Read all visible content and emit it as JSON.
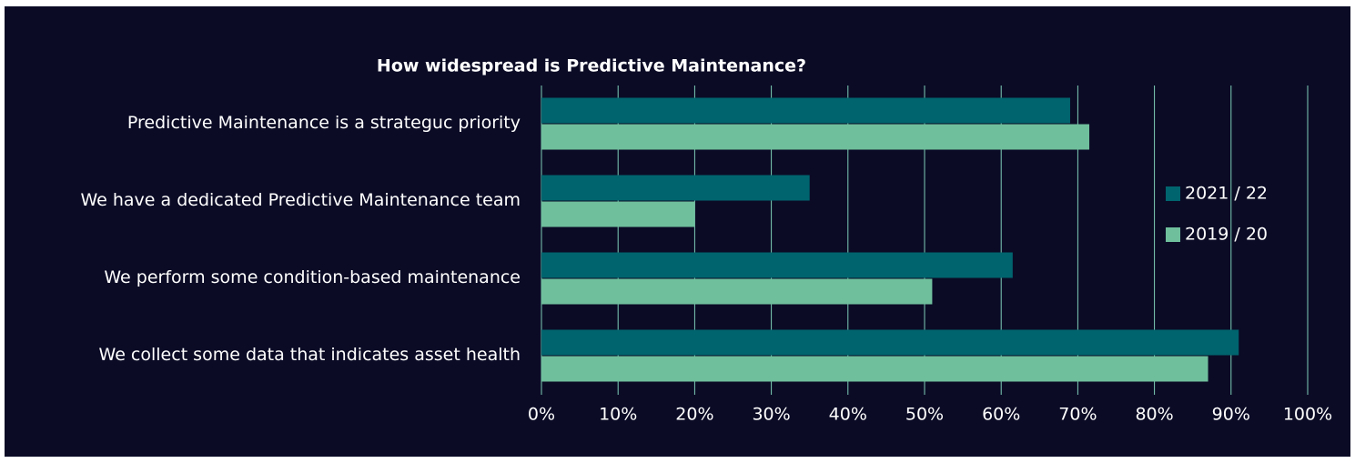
{
  "chart_data": {
    "type": "bar",
    "orientation": "horizontal",
    "title": "How widespread is Predictive Maintenance?",
    "categories": [
      "Predictive Maintenance is a strateguc priority",
      "We have a dedicated Predictive Maintenance team",
      "We perform some condition-based maintenance",
      "We collect some data that indicates asset health"
    ],
    "series": [
      {
        "name": "2021 / 22",
        "color": "#00646e",
        "values": [
          69,
          35,
          61.5,
          91
        ]
      },
      {
        "name": "2019 / 20",
        "color": "#6fbf9c",
        "values": [
          71.5,
          20,
          51,
          87
        ]
      }
    ],
    "xlim": [
      0,
      100
    ],
    "xticks": [
      {
        "value": 0,
        "label": "0%"
      },
      {
        "value": 10,
        "label": "10%"
      },
      {
        "value": 20,
        "label": "20%"
      },
      {
        "value": 30,
        "label": "30%"
      },
      {
        "value": 40,
        "label": "40%"
      },
      {
        "value": 50,
        "label": "50%"
      },
      {
        "value": 60,
        "label": "60%"
      },
      {
        "value": 70,
        "label": "70%"
      },
      {
        "value": 80,
        "label": "80%"
      },
      {
        "value": 90,
        "label": "90%"
      },
      {
        "value": 100,
        "label": "100%"
      }
    ],
    "grid": true,
    "legend": "right"
  }
}
